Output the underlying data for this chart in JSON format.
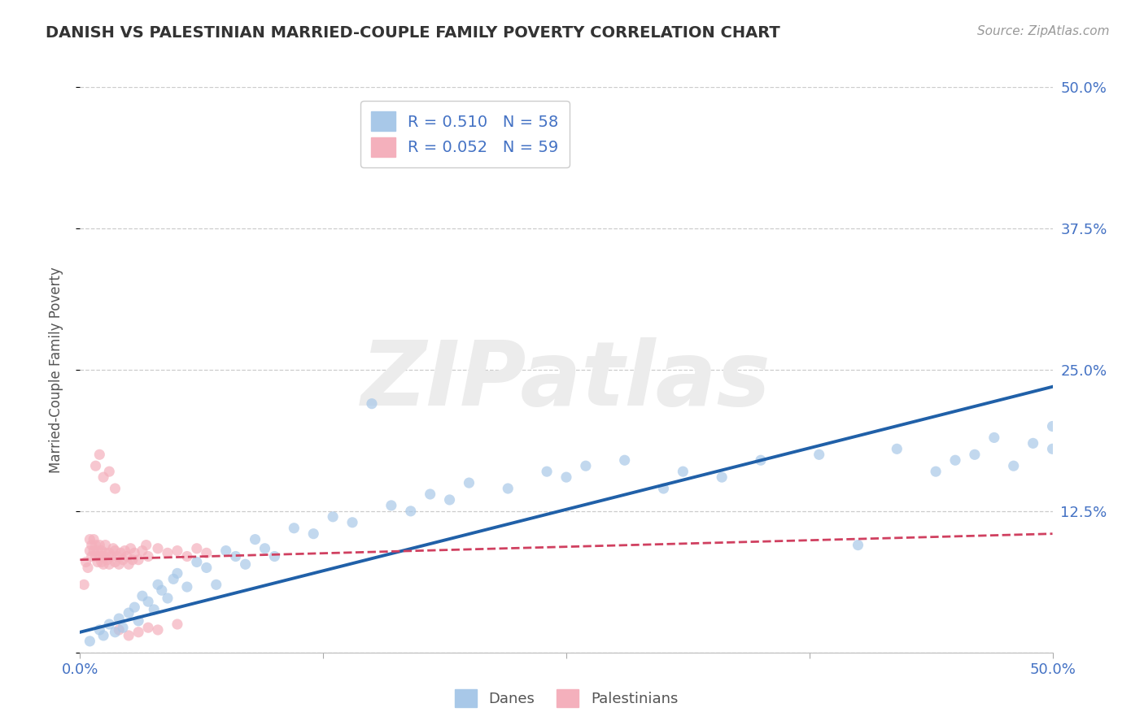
{
  "title": "DANISH VS PALESTINIAN MARRIED-COUPLE FAMILY POVERTY CORRELATION CHART",
  "source": "Source: ZipAtlas.com",
  "ylabel": "Married-Couple Family Poverty",
  "xlim": [
    0.0,
    0.5
  ],
  "ylim": [
    0.0,
    0.5
  ],
  "xticks": [
    0.0,
    0.125,
    0.25,
    0.375,
    0.5
  ],
  "xticklabels": [
    "0.0%",
    "",
    "",
    "",
    "50.0%"
  ],
  "yticks": [
    0.0,
    0.125,
    0.25,
    0.375,
    0.5
  ],
  "yticklabels_right": [
    "",
    "12.5%",
    "25.0%",
    "37.5%",
    "50.0%"
  ],
  "blue_color": "#a8c8e8",
  "pink_color": "#f4b0bc",
  "blue_line_color": "#2060a8",
  "pink_line_color": "#d04060",
  "background_color": "#ffffff",
  "grid_color": "#cccccc",
  "title_color": "#333333",
  "source_color": "#999999",
  "watermark_color": "#ececec",
  "scatter_alpha": 0.7,
  "scatter_size": 90,
  "blue_scatter": [
    [
      0.005,
      0.01
    ],
    [
      0.01,
      0.02
    ],
    [
      0.012,
      0.015
    ],
    [
      0.015,
      0.025
    ],
    [
      0.018,
      0.018
    ],
    [
      0.02,
      0.03
    ],
    [
      0.022,
      0.022
    ],
    [
      0.025,
      0.035
    ],
    [
      0.028,
      0.04
    ],
    [
      0.03,
      0.028
    ],
    [
      0.032,
      0.05
    ],
    [
      0.035,
      0.045
    ],
    [
      0.038,
      0.038
    ],
    [
      0.04,
      0.06
    ],
    [
      0.042,
      0.055
    ],
    [
      0.045,
      0.048
    ],
    [
      0.048,
      0.065
    ],
    [
      0.05,
      0.07
    ],
    [
      0.055,
      0.058
    ],
    [
      0.06,
      0.08
    ],
    [
      0.065,
      0.075
    ],
    [
      0.07,
      0.06
    ],
    [
      0.075,
      0.09
    ],
    [
      0.08,
      0.085
    ],
    [
      0.085,
      0.078
    ],
    [
      0.09,
      0.1
    ],
    [
      0.095,
      0.092
    ],
    [
      0.1,
      0.085
    ],
    [
      0.11,
      0.11
    ],
    [
      0.12,
      0.105
    ],
    [
      0.13,
      0.12
    ],
    [
      0.14,
      0.115
    ],
    [
      0.15,
      0.22
    ],
    [
      0.16,
      0.13
    ],
    [
      0.17,
      0.125
    ],
    [
      0.18,
      0.14
    ],
    [
      0.19,
      0.135
    ],
    [
      0.2,
      0.15
    ],
    [
      0.22,
      0.145
    ],
    [
      0.24,
      0.16
    ],
    [
      0.25,
      0.155
    ],
    [
      0.26,
      0.165
    ],
    [
      0.28,
      0.17
    ],
    [
      0.3,
      0.145
    ],
    [
      0.31,
      0.16
    ],
    [
      0.33,
      0.155
    ],
    [
      0.35,
      0.17
    ],
    [
      0.38,
      0.175
    ],
    [
      0.4,
      0.095
    ],
    [
      0.42,
      0.18
    ],
    [
      0.44,
      0.16
    ],
    [
      0.45,
      0.17
    ],
    [
      0.46,
      0.175
    ],
    [
      0.47,
      0.19
    ],
    [
      0.48,
      0.165
    ],
    [
      0.49,
      0.185
    ],
    [
      0.5,
      0.2
    ],
    [
      0.5,
      0.18
    ]
  ],
  "pink_scatter": [
    [
      0.002,
      0.06
    ],
    [
      0.003,
      0.08
    ],
    [
      0.004,
      0.075
    ],
    [
      0.005,
      0.09
    ],
    [
      0.005,
      0.1
    ],
    [
      0.006,
      0.085
    ],
    [
      0.006,
      0.095
    ],
    [
      0.007,
      0.09
    ],
    [
      0.007,
      0.1
    ],
    [
      0.008,
      0.085
    ],
    [
      0.008,
      0.095
    ],
    [
      0.009,
      0.08
    ],
    [
      0.009,
      0.09
    ],
    [
      0.01,
      0.085
    ],
    [
      0.01,
      0.095
    ],
    [
      0.011,
      0.08
    ],
    [
      0.011,
      0.09
    ],
    [
      0.012,
      0.085
    ],
    [
      0.012,
      0.078
    ],
    [
      0.013,
      0.088
    ],
    [
      0.013,
      0.095
    ],
    [
      0.014,
      0.082
    ],
    [
      0.015,
      0.088
    ],
    [
      0.015,
      0.078
    ],
    [
      0.016,
      0.085
    ],
    [
      0.017,
      0.092
    ],
    [
      0.018,
      0.08
    ],
    [
      0.018,
      0.09
    ],
    [
      0.019,
      0.085
    ],
    [
      0.02,
      0.078
    ],
    [
      0.021,
      0.088
    ],
    [
      0.022,
      0.082
    ],
    [
      0.023,
      0.09
    ],
    [
      0.024,
      0.085
    ],
    [
      0.025,
      0.078
    ],
    [
      0.026,
      0.092
    ],
    [
      0.027,
      0.082
    ],
    [
      0.028,
      0.088
    ],
    [
      0.03,
      0.082
    ],
    [
      0.032,
      0.09
    ],
    [
      0.034,
      0.095
    ],
    [
      0.035,
      0.085
    ],
    [
      0.04,
      0.092
    ],
    [
      0.045,
      0.088
    ],
    [
      0.05,
      0.09
    ],
    [
      0.055,
      0.085
    ],
    [
      0.06,
      0.092
    ],
    [
      0.065,
      0.088
    ],
    [
      0.008,
      0.165
    ],
    [
      0.01,
      0.175
    ],
    [
      0.012,
      0.155
    ],
    [
      0.015,
      0.16
    ],
    [
      0.018,
      0.145
    ],
    [
      0.02,
      0.02
    ],
    [
      0.025,
      0.015
    ],
    [
      0.03,
      0.018
    ],
    [
      0.035,
      0.022
    ],
    [
      0.04,
      0.02
    ],
    [
      0.05,
      0.025
    ]
  ],
  "blue_line": {
    "x0": 0.0,
    "x1": 0.5,
    "y0": 0.018,
    "y1": 0.235
  },
  "pink_line": {
    "x0": 0.0,
    "x1": 0.5,
    "y0": 0.082,
    "y1": 0.105
  }
}
